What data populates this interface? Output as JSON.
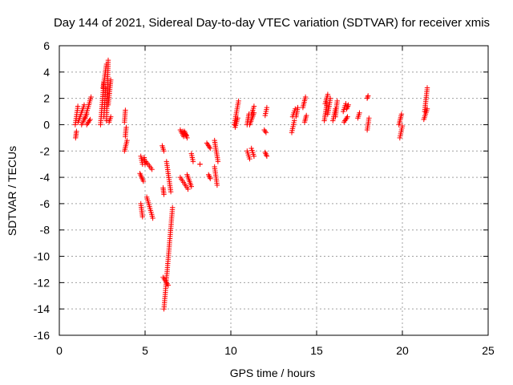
{
  "chart_data": {
    "type": "scatter",
    "title": "Day 144 of 2021, Sidereal Day-to-day VTEC variation (SDTVAR) for receiver xmis",
    "xlabel": "GPS time / hours",
    "ylabel": "SDTVAR / TECUs",
    "xlim": [
      0,
      25
    ],
    "ylim": [
      -16,
      6
    ],
    "xticks": [
      0,
      5,
      10,
      15,
      20,
      25
    ],
    "yticks": [
      -16,
      -14,
      -12,
      -10,
      -8,
      -6,
      -4,
      -2,
      0,
      2,
      4,
      6
    ],
    "grid": true,
    "marker": "+",
    "color": "#ff0000",
    "segments": [
      [
        0.93,
        0.0,
        1.08,
        1.4
      ],
      [
        0.95,
        -1.0,
        1.0,
        -0.5
      ],
      [
        1.1,
        0.2,
        1.45,
        1.5
      ],
      [
        1.3,
        0.0,
        1.6,
        0.8
      ],
      [
        1.5,
        0.5,
        1.85,
        2.1
      ],
      [
        1.6,
        0.0,
        1.8,
        0.4
      ],
      [
        2.4,
        0.0,
        2.6,
        3.2
      ],
      [
        2.55,
        2.8,
        2.75,
        4.6
      ],
      [
        2.6,
        0.6,
        2.7,
        2.8
      ],
      [
        2.75,
        0.3,
        2.85,
        4.9
      ],
      [
        2.85,
        1.5,
        3.0,
        3.4
      ],
      [
        2.9,
        0.2,
        3.0,
        0.6
      ],
      [
        3.8,
        0.2,
        3.85,
        1.1
      ],
      [
        3.85,
        -0.9,
        3.9,
        -0.2
      ],
      [
        3.8,
        -2.0,
        3.95,
        -1.2
      ],
      [
        4.75,
        -2.4,
        4.85,
        -3.0
      ],
      [
        4.7,
        -3.7,
        4.9,
        -4.3
      ],
      [
        4.75,
        -6.0,
        4.85,
        -7.0
      ],
      [
        4.95,
        -2.5,
        5.0,
        -3.0
      ],
      [
        5.05,
        -2.8,
        5.4,
        -3.4
      ],
      [
        5.1,
        -5.5,
        5.45,
        -7.1
      ],
      [
        6.0,
        -1.6,
        6.1,
        -2.0
      ],
      [
        6.05,
        -11.6,
        6.35,
        -12.2
      ],
      [
        6.1,
        -14.0,
        6.6,
        -6.3
      ],
      [
        6.25,
        -2.8,
        6.5,
        -5.1
      ],
      [
        6.05,
        -4.8,
        6.1,
        -5.3
      ],
      [
        7.05,
        -0.4,
        7.25,
        -0.9
      ],
      [
        7.2,
        -0.5,
        7.4,
        -0.8
      ],
      [
        7.3,
        -0.5,
        7.45,
        -1.0
      ],
      [
        7.05,
        -4.0,
        7.5,
        -4.9
      ],
      [
        7.45,
        -3.8,
        7.7,
        -4.7
      ],
      [
        7.7,
        -2.2,
        7.8,
        -2.8
      ],
      [
        8.2,
        -3.0,
        8.2,
        -3.0
      ],
      [
        8.6,
        -1.4,
        8.8,
        -1.8
      ],
      [
        8.7,
        -3.8,
        8.8,
        -4.1
      ],
      [
        9.05,
        -1.2,
        9.25,
        -2.8
      ],
      [
        9.05,
        -3.2,
        9.2,
        -4.6
      ],
      [
        10.2,
        0.0,
        10.45,
        1.8
      ],
      [
        10.25,
        -0.2,
        10.4,
        0.5
      ],
      [
        10.95,
        0.0,
        11.05,
        0.8
      ],
      [
        10.95,
        -2.0,
        11.1,
        -2.6
      ],
      [
        11.1,
        0.0,
        11.35,
        0.9
      ],
      [
        11.2,
        0.8,
        11.35,
        1.4
      ],
      [
        11.2,
        -1.8,
        11.35,
        -2.4
      ],
      [
        11.95,
        -0.4,
        12.05,
        -0.6
      ],
      [
        12.0,
        0.7,
        12.1,
        1.3
      ],
      [
        12.0,
        -2.1,
        12.1,
        -2.4
      ],
      [
        13.55,
        -0.6,
        13.7,
        0.3
      ],
      [
        13.6,
        0.6,
        13.75,
        1.2
      ],
      [
        13.8,
        0.6,
        13.9,
        1.3
      ],
      [
        14.2,
        1.3,
        14.35,
        2.1
      ],
      [
        14.3,
        0.2,
        14.4,
        0.7
      ],
      [
        15.45,
        0.3,
        15.6,
        1.6
      ],
      [
        15.5,
        1.6,
        15.65,
        2.3
      ],
      [
        15.65,
        0.8,
        15.8,
        2.0
      ],
      [
        15.95,
        0.3,
        16.1,
        1.2
      ],
      [
        16.1,
        0.6,
        16.2,
        1.8
      ],
      [
        16.55,
        1.0,
        16.7,
        1.6
      ],
      [
        16.6,
        0.2,
        16.8,
        0.6
      ],
      [
        16.75,
        1.2,
        16.85,
        1.5
      ],
      [
        17.4,
        0.5,
        17.5,
        0.9
      ],
      [
        17.95,
        2.0,
        18.0,
        2.2
      ],
      [
        17.95,
        -0.4,
        18.05,
        0.5
      ],
      [
        19.8,
        0.0,
        19.95,
        0.8
      ],
      [
        19.85,
        -1.0,
        20.0,
        -0.1
      ],
      [
        21.25,
        0.4,
        21.45,
        1.2
      ],
      [
        21.3,
        1.0,
        21.45,
        2.8
      ]
    ]
  }
}
